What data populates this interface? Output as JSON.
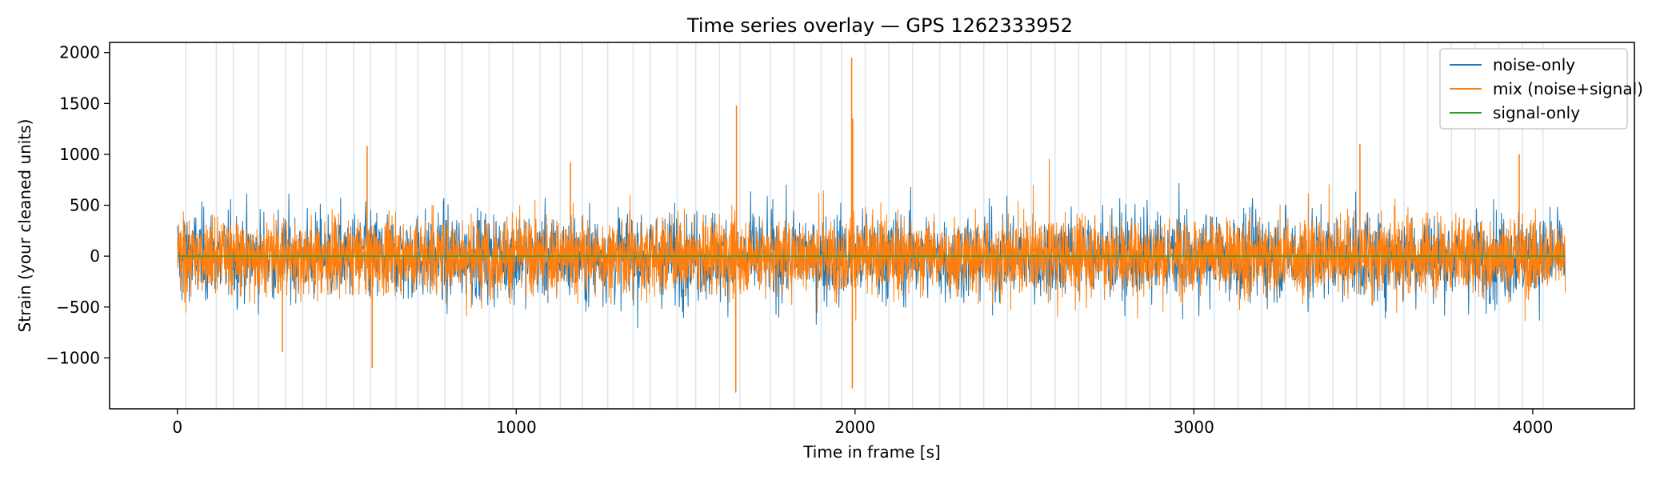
{
  "chart_data": {
    "type": "line",
    "title": "Time series overlay — GPS 1262333952",
    "xlabel": "Time in frame [s]",
    "ylabel": "Strain (your cleaned units)",
    "xlim": [
      -200,
      4300
    ],
    "ylim": [
      -1500,
      2100
    ],
    "xticks": [
      0,
      1000,
      2000,
      3000,
      4000
    ],
    "yticks": [
      -1000,
      -500,
      0,
      500,
      1000,
      1500,
      2000
    ],
    "legend_position": "top-right",
    "grid": false,
    "frame_boundaries_s": [
      25,
      115,
      165,
      240,
      320,
      370,
      440,
      520,
      570,
      645,
      710,
      790,
      840,
      920,
      990,
      1070,
      1130,
      1195,
      1270,
      1345,
      1395,
      1475,
      1530,
      1600,
      1660,
      1750,
      1820,
      1900,
      1960,
      2030,
      2100,
      2170,
      2250,
      2310,
      2380,
      2450,
      2520,
      2590,
      2660,
      2725,
      2800,
      2870,
      2930,
      3000,
      3060,
      3130,
      3200,
      3270,
      3340,
      3410,
      3480,
      3550,
      3620,
      3690,
      3760,
      3830,
      3900,
      3970,
      4030
    ],
    "series": [
      {
        "name": "noise-only",
        "color": "#1f77b4",
        "description_values": {
          "typical_range": [
            -500,
            500
          ],
          "peak_max": 1350,
          "peak_min": -1300
        }
      },
      {
        "name": "mix (noise+signal)",
        "color": "#ff7f0e",
        "x_range": [
          0,
          4096
        ],
        "typical_amplitude": 450,
        "spikes": [
          {
            "x": 1650,
            "y": 1480
          },
          {
            "x": 1648,
            "y": -1340
          },
          {
            "x": 1990,
            "y": 1950
          },
          {
            "x": 1992,
            "y": -1300
          },
          {
            "x": 1993,
            "y": 1350
          },
          {
            "x": 575,
            "y": -1100
          },
          {
            "x": 560,
            "y": 1080
          },
          {
            "x": 3490,
            "y": 1100
          },
          {
            "x": 1160,
            "y": 920
          },
          {
            "x": 310,
            "y": -940
          },
          {
            "x": 3960,
            "y": 1000
          }
        ]
      },
      {
        "name": "signal-only",
        "color": "#2ca02c",
        "values": "flat near 0"
      }
    ]
  }
}
